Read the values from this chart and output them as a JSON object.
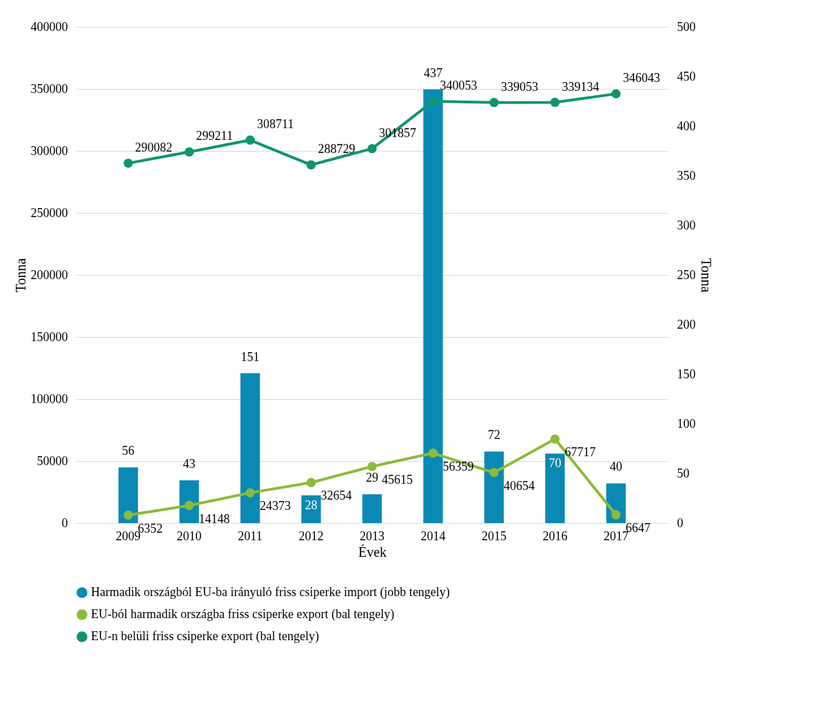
{
  "chart_data": {
    "type": "bar",
    "xlabel": "Évek",
    "ylabel": "Tonna",
    "y2label": "Tonna",
    "categories": [
      "2009",
      "2010",
      "2011",
      "2012",
      "2013",
      "2014",
      "2015",
      "2016",
      "2017"
    ],
    "series": [
      {
        "name": "Harmadik országból EU-ba irányuló friss csiperke import (jobb tengely)",
        "axis": "y2",
        "color": "#0a89b5",
        "values": [
          56,
          43,
          151,
          28,
          29,
          437,
          72,
          70,
          40
        ]
      },
      {
        "name": "EU-ból harmadik országba friss csiperke export (bal tengely)",
        "type": "line",
        "color": "#8bbb3a",
        "values": [
          6352,
          14148,
          24373,
          32654,
          45615,
          56359,
          40654,
          67717,
          6647
        ]
      },
      {
        "name": "EU-n belüli friss csiperke export (bal tengely)",
        "type": "line",
        "color": "#10956e",
        "values": [
          290082,
          299211,
          308711,
          288729,
          301857,
          340053,
          339053,
          339134,
          346043
        ]
      }
    ],
    "ylim": [
      0,
      400000
    ],
    "yticks": [
      0,
      50000,
      100000,
      150000,
      200000,
      250000,
      300000,
      350000,
      400000
    ],
    "y2lim": [
      0,
      500
    ],
    "y2ticks": [
      0,
      50,
      100,
      150,
      200,
      250,
      300,
      350,
      400,
      450,
      500
    ],
    "data_labels": true,
    "legend": "bottom",
    "grid": "y",
    "marker": "circle",
    "line_style": "solid"
  }
}
